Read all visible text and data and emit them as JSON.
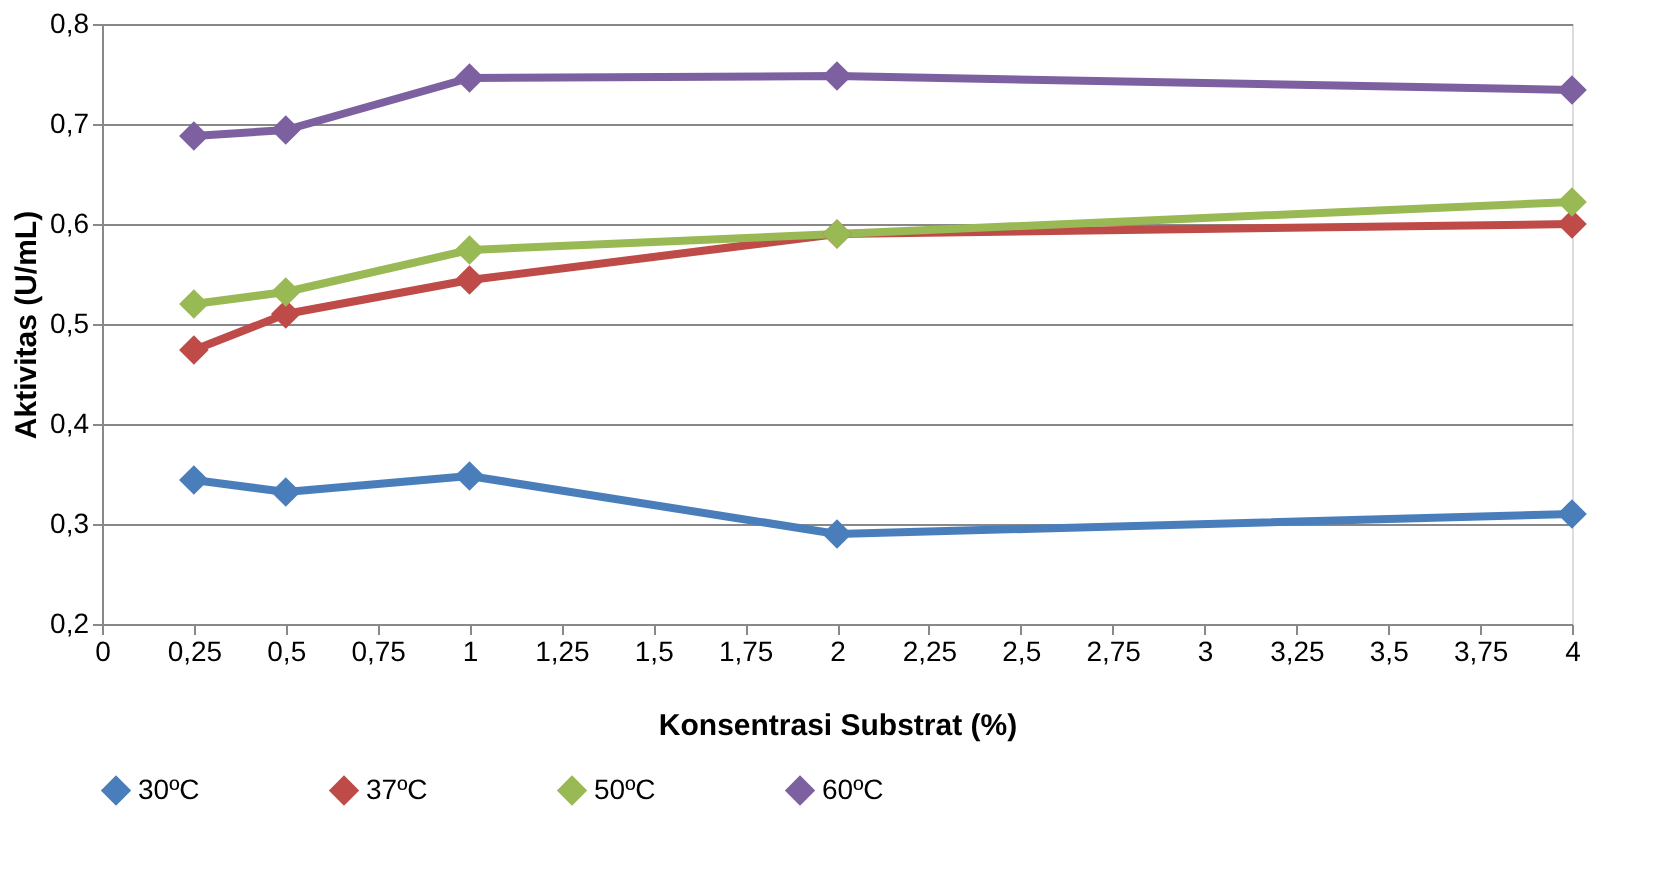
{
  "chart_data": {
    "type": "line",
    "xlabel": "Konsentrasi Substrat (%)",
    "ylabel": "Aktivitas (U/mL)",
    "x": [
      0.25,
      0.5,
      1,
      2,
      4
    ],
    "series": [
      {
        "name": "30ºC",
        "color": "#4a7ebb",
        "values": [
          0.344,
          0.332,
          0.348,
          0.29,
          0.31
        ]
      },
      {
        "name": "37ºC",
        "color": "#be4b48",
        "values": [
          0.474,
          0.51,
          0.544,
          0.59,
          0.6
        ]
      },
      {
        "name": "50ºC",
        "color": "#98b954",
        "values": [
          0.52,
          0.532,
          0.574,
          0.59,
          0.622
        ]
      },
      {
        "name": "60ºC",
        "color": "#7d60a0",
        "values": [
          0.688,
          0.694,
          0.746,
          0.748,
          0.734
        ]
      }
    ],
    "xlim": [
      0,
      4
    ],
    "ylim": [
      0.2,
      0.8
    ],
    "xticks": [
      0,
      {
        "value": 0.25,
        "label": "0,25"
      },
      {
        "value": 0.5,
        "label": "0,5"
      },
      {
        "value": 0.75,
        "label": "0,75"
      },
      1,
      {
        "value": 1.25,
        "label": "1,25"
      },
      {
        "value": 1.5,
        "label": "1,5"
      },
      {
        "value": 1.75,
        "label": "1,75"
      },
      2,
      {
        "value": 2.25,
        "label": "2,25"
      },
      {
        "value": 2.5,
        "label": "2,5"
      },
      {
        "value": 2.75,
        "label": "2,75"
      },
      3,
      {
        "value": 3.25,
        "label": "3,25"
      },
      {
        "value": 3.5,
        "label": "3,5"
      },
      {
        "value": 3.75,
        "label": "3,75"
      },
      4
    ],
    "yticks": [
      {
        "value": 0.2,
        "label": "0,2"
      },
      {
        "value": 0.3,
        "label": "0,3"
      },
      {
        "value": 0.4,
        "label": "0,4"
      },
      {
        "value": 0.5,
        "label": "0,5"
      },
      {
        "value": 0.6,
        "label": "0,6"
      },
      {
        "value": 0.7,
        "label": "0,7"
      },
      {
        "value": 0.8,
        "label": "0,8"
      }
    ],
    "grid": "y",
    "legend": "bottom",
    "marker": "diamond",
    "line_style": "solid"
  }
}
